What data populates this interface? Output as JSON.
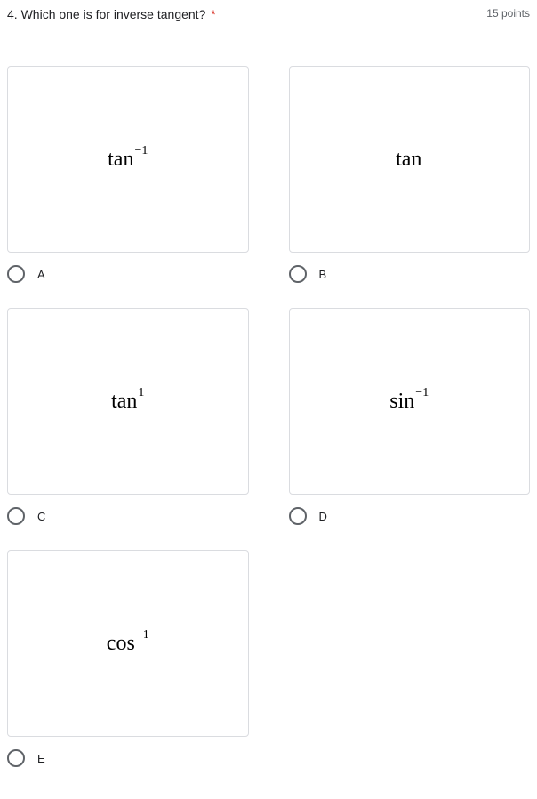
{
  "question": {
    "number": "4.",
    "text": "Which one is for inverse tangent?",
    "required_marker": "*",
    "points": "15 points"
  },
  "options": [
    {
      "letter": "A",
      "base": "tan",
      "sup": "−1"
    },
    {
      "letter": "B",
      "base": "tan",
      "sup": ""
    },
    {
      "letter": "C",
      "base": "tan",
      "sup": "1"
    },
    {
      "letter": "D",
      "base": "sin",
      "sup": "−1"
    },
    {
      "letter": "E",
      "base": "cos",
      "sup": "−1"
    }
  ]
}
